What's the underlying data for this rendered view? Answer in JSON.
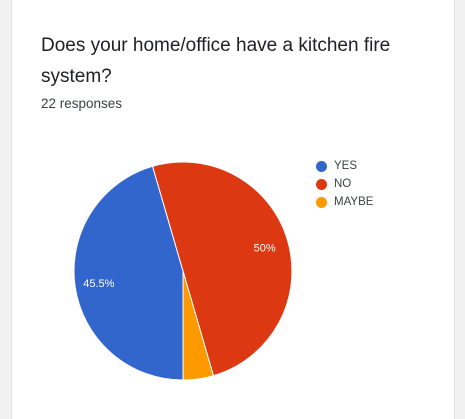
{
  "question": {
    "title": "Does your home/office have a kitchen fire system?",
    "response_count": "22 responses"
  },
  "chart_data": {
    "type": "pie",
    "categories": [
      "YES",
      "NO",
      "MAYBE"
    ],
    "values": [
      45.5,
      50,
      4.5
    ],
    "data_labels": [
      "45.5%",
      "50%",
      ""
    ],
    "colors": [
      "#3366cc",
      "#dc3912",
      "#ff9900"
    ],
    "start_angle_deg": 90,
    "legend_position": "right"
  }
}
